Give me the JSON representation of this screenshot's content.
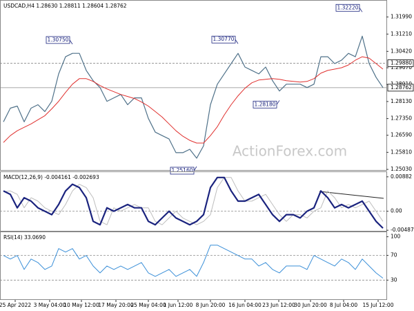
{
  "chart_data": [
    {
      "type": "line",
      "title": "USDCAD,H4  1.28630 1.28811 1.28604 1.28762",
      "watermark": "ActionForex.com",
      "xlim": [
        -0.5,
        55.5
      ],
      "ylim": [
        1.2497,
        1.3264
      ],
      "yticks": [
        {
          "value": 1.3199,
          "label": "1.31990"
        },
        {
          "value": 1.3121,
          "label": "1.31210"
        },
        {
          "value": 1.3042,
          "label": "1.30420"
        },
        {
          "value": 1.2967,
          "label": "1.29670"
        },
        {
          "value": 1.2891,
          "label": "1.28910"
        },
        {
          "value": 1.2813,
          "label": "1.28130"
        },
        {
          "value": 1.2735,
          "label": "1.27350"
        },
        {
          "value": 1.2659,
          "label": "1.26590"
        },
        {
          "value": 1.2581,
          "label": "1.25810"
        },
        {
          "value": 1.2503,
          "label": "1.25030"
        }
      ],
      "levels": [
        {
          "value": 1.2988,
          "label": "1.29880",
          "dashed": true
        },
        {
          "value": 1.28762,
          "label": "1.28762",
          "dashed": false
        }
      ],
      "annotations": [
        {
          "x": 10,
          "value": 1.3075,
          "label": "1.30750"
        },
        {
          "x": 28,
          "value": 1.2516,
          "label": "1.25160"
        },
        {
          "x": 34,
          "value": 1.3077,
          "label": "1.30770"
        },
        {
          "x": 40,
          "value": 1.2818,
          "label": "1.28180"
        },
        {
          "x": 52,
          "value": 1.3222,
          "label": "1.32220"
        }
      ],
      "series": [
        {
          "color": "#4f7189",
          "width": 1.2,
          "values": [
            1.27201,
            1.27827,
            1.27921,
            1.27201,
            1.27827,
            1.27984,
            1.27671,
            1.2814,
            1.29392,
            1.30175,
            1.30331,
            1.30331,
            1.29549,
            1.29079,
            1.28766,
            1.2814,
            1.28297,
            1.28453,
            1.27984,
            1.28297,
            1.28297,
            1.27358,
            1.26732,
            1.26575,
            1.26419,
            1.25793,
            1.25793,
            1.25949,
            1.25542,
            1.26106,
            1.27984,
            1.28923,
            1.29392,
            1.29862,
            1.30331,
            1.29705,
            1.29549,
            1.29392,
            1.29705,
            1.29079,
            1.2861,
            1.28923,
            1.28923,
            1.28923,
            1.28766,
            1.28923,
            1.30175,
            1.30175,
            1.29862,
            1.30018,
            1.30331,
            1.30175,
            1.31114,
            1.29862,
            1.29236,
            1.28766
          ]
        },
        {
          "color": "#e0302e",
          "width": 1,
          "values": [
            1.26262,
            1.26575,
            1.26794,
            1.26951,
            1.27107,
            1.27295,
            1.27483,
            1.27796,
            1.2814,
            1.28547,
            1.28923,
            1.29173,
            1.29173,
            1.29048,
            1.2886,
            1.28703,
            1.28578,
            1.28453,
            1.28359,
            1.28265,
            1.28109,
            1.27921,
            1.27671,
            1.2742,
            1.27107,
            1.26794,
            1.26544,
            1.26356,
            1.26231,
            1.26231,
            1.26575,
            1.26982,
            1.27514,
            1.27984,
            1.2839,
            1.28735,
            1.28985,
            1.2911,
            1.29142,
            1.29173,
            1.29142,
            1.29079,
            1.29048,
            1.29016,
            1.29048,
            1.29173,
            1.29423,
            1.29549,
            1.29611,
            1.29674,
            1.29799,
            1.30018,
            1.30175,
            1.30112,
            1.29862,
            1.29611
          ]
        }
      ]
    },
    {
      "type": "line",
      "title": "MACD(12,26,9) -0.004161 -0.002693",
      "xlim": [
        -0.5,
        55.5
      ],
      "ylim": [
        -0.0052,
        0.0095
      ],
      "yticks": [
        0.00882,
        {
          "value": 0,
          "label": "0.00"
        },
        -0.004872
      ],
      "levels": [
        {
          "value": 0,
          "dashed": true
        }
      ],
      "series": [
        {
          "color": "#bdbdbd",
          "width": 1,
          "values": [
            0.005,
            0.00519,
            0.00433,
            0.00087,
            0.00346,
            0.0026,
            0.00087,
            0,
            -0.00087,
            0.00173,
            0.00519,
            0.00692,
            0.00606,
            0.00346,
            -0.0026,
            -0.00346,
            0.00087,
            0,
            0.00087,
            0.00173,
            0.00087,
            0.00087,
            -0.0026,
            -0.00346,
            -0.00173,
            0,
            -0.00173,
            -0.0026,
            -0.00346,
            -0.0026,
            -0.00087,
            0.00606,
            0.00865,
            0.00865,
            0.00519,
            0.0026,
            0.0026,
            0.00346,
            0.00433,
            0.00173,
            -0.00087,
            -0.0026,
            -0.00087,
            -0.00087,
            -0.00173,
            0,
            0.00087,
            0.00519,
            0.00346,
            0.00087,
            0.00173,
            0.00087,
            0.00173,
            0.0026,
            0,
            -0.0026
          ]
        },
        {
          "color": "#1a237e",
          "width": 2.2,
          "values": [
            0.00519,
            0.00433,
            0.00087,
            0.00346,
            0.0026,
            0.00087,
            0,
            -0.00087,
            0.00173,
            0.00519,
            0.00692,
            0.00606,
            0.00346,
            -0.0026,
            -0.00346,
            0.00087,
            0,
            0.00087,
            0.00173,
            0.00087,
            0.00087,
            -0.0026,
            -0.00346,
            -0.00173,
            0,
            -0.00173,
            -0.0026,
            -0.00346,
            -0.0026,
            -0.00087,
            0.00606,
            0.00865,
            0.00865,
            0.00519,
            0.0026,
            0.0026,
            0.00346,
            0.00433,
            0.00173,
            -0.00087,
            -0.0026,
            -0.00087,
            -0.00087,
            -0.00173,
            0,
            0.00087,
            0.00519,
            0.00346,
            0.00087,
            0.00173,
            0.00087,
            0.00173,
            0.0026,
            0,
            -0.0026,
            -0.00433
          ]
        }
      ]
    },
    {
      "type": "line",
      "title": "RSI(14) 33.0690",
      "xlim": [
        -0.5,
        55.5
      ],
      "ylim": [
        -2,
        104
      ],
      "yticks": [
        100,
        70,
        30
      ],
      "levels": [
        {
          "value": 70,
          "dashed": true
        },
        {
          "value": 30,
          "dashed": true
        }
      ],
      "xticks": [
        {
          "value": 1.7,
          "label": "25 Apr 2022"
        },
        {
          "value": 6.7,
          "label": "3 May 04:00"
        },
        {
          "value": 11.3,
          "label": "10 May 12:00"
        },
        {
          "value": 16.3,
          "label": "17 May 20:00"
        },
        {
          "value": 21,
          "label": "25 May 04:00"
        },
        {
          "value": 25.3,
          "label": "1 Jun 12:00"
        },
        {
          "value": 30,
          "label": "8 Jun 20:00"
        },
        {
          "value": 35,
          "label": "16 Jun 04:00"
        },
        {
          "value": 39.9,
          "label": "23 Jun 12:00"
        },
        {
          "value": 44.5,
          "label": "30 Jun 20:00"
        },
        {
          "value": 49.3,
          "label": "8 Jul 04:00"
        },
        {
          "value": 54.3,
          "label": "15 Jul 12:00"
        }
      ],
      "series": [
        {
          "color": "#3a8fd8",
          "width": 1,
          "values": [
            69.7,
            64.0,
            69.7,
            47.2,
            64.0,
            58.4,
            47.2,
            52.8,
            80.9,
            75.3,
            80.9,
            64.0,
            69.7,
            52.8,
            41.6,
            52.8,
            47.2,
            52.8,
            47.2,
            52.8,
            58.4,
            41.6,
            36.0,
            41.6,
            47.2,
            36.0,
            41.6,
            47.2,
            36.0,
            58.4,
            86.5,
            86.5,
            80.9,
            75.3,
            69.7,
            64.0,
            64.0,
            52.8,
            58.4,
            47.2,
            41.6,
            52.8,
            52.8,
            52.8,
            47.2,
            69.7,
            64.0,
            58.4,
            52.8,
            64.0,
            58.4,
            47.2,
            64.0,
            52.8,
            41.6,
            33.1
          ]
        }
      ]
    }
  ]
}
